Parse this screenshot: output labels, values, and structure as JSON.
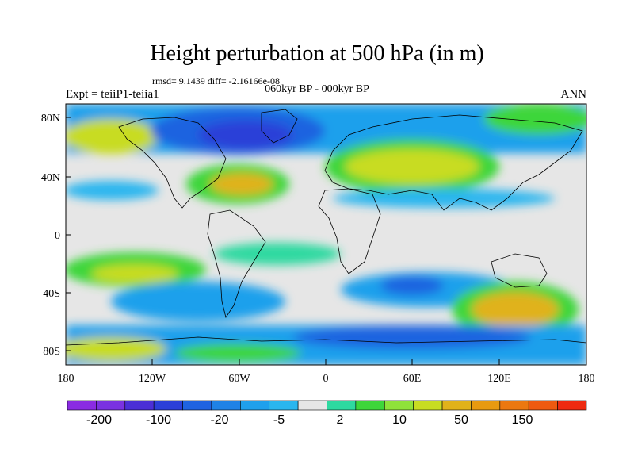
{
  "header": {
    "title": "Height perturbation at 500 hPa (in m)",
    "stats": "rmsd= 9.1439 diff= -2.16166e-08",
    "comparison": "060kyr BP - 000kyr BP",
    "experiment": "Expt = teiiP1-teiia1",
    "season": "ANN"
  },
  "map": {
    "projection": "cylindrical equidistant",
    "lon_range": [
      -180,
      180
    ],
    "lat_range": [
      -90,
      90
    ],
    "y_ticks": [
      "80N",
      "40N",
      "0",
      "40S",
      "80S"
    ],
    "x_ticks": [
      "180",
      "120W",
      "60W",
      "0",
      "60E",
      "120E",
      "180"
    ]
  },
  "colorbar": {
    "levels_labeled": [
      "-200",
      "-100",
      "-20",
      "-5",
      "2",
      "10",
      "50",
      "150"
    ],
    "colors": [
      "#8a2be2",
      "#7a32e0",
      "#4b2fd6",
      "#2b3fd8",
      "#1f63e0",
      "#1f82e6",
      "#1fa0ec",
      "#2ab6ef",
      "#e6e6e6",
      "#2ed9a0",
      "#3ed63a",
      "#8fe23a",
      "#c8dc22",
      "#e0b21a",
      "#e89a10",
      "#ec7810",
      "#ee5a10",
      "#ee2a10"
    ]
  }
}
